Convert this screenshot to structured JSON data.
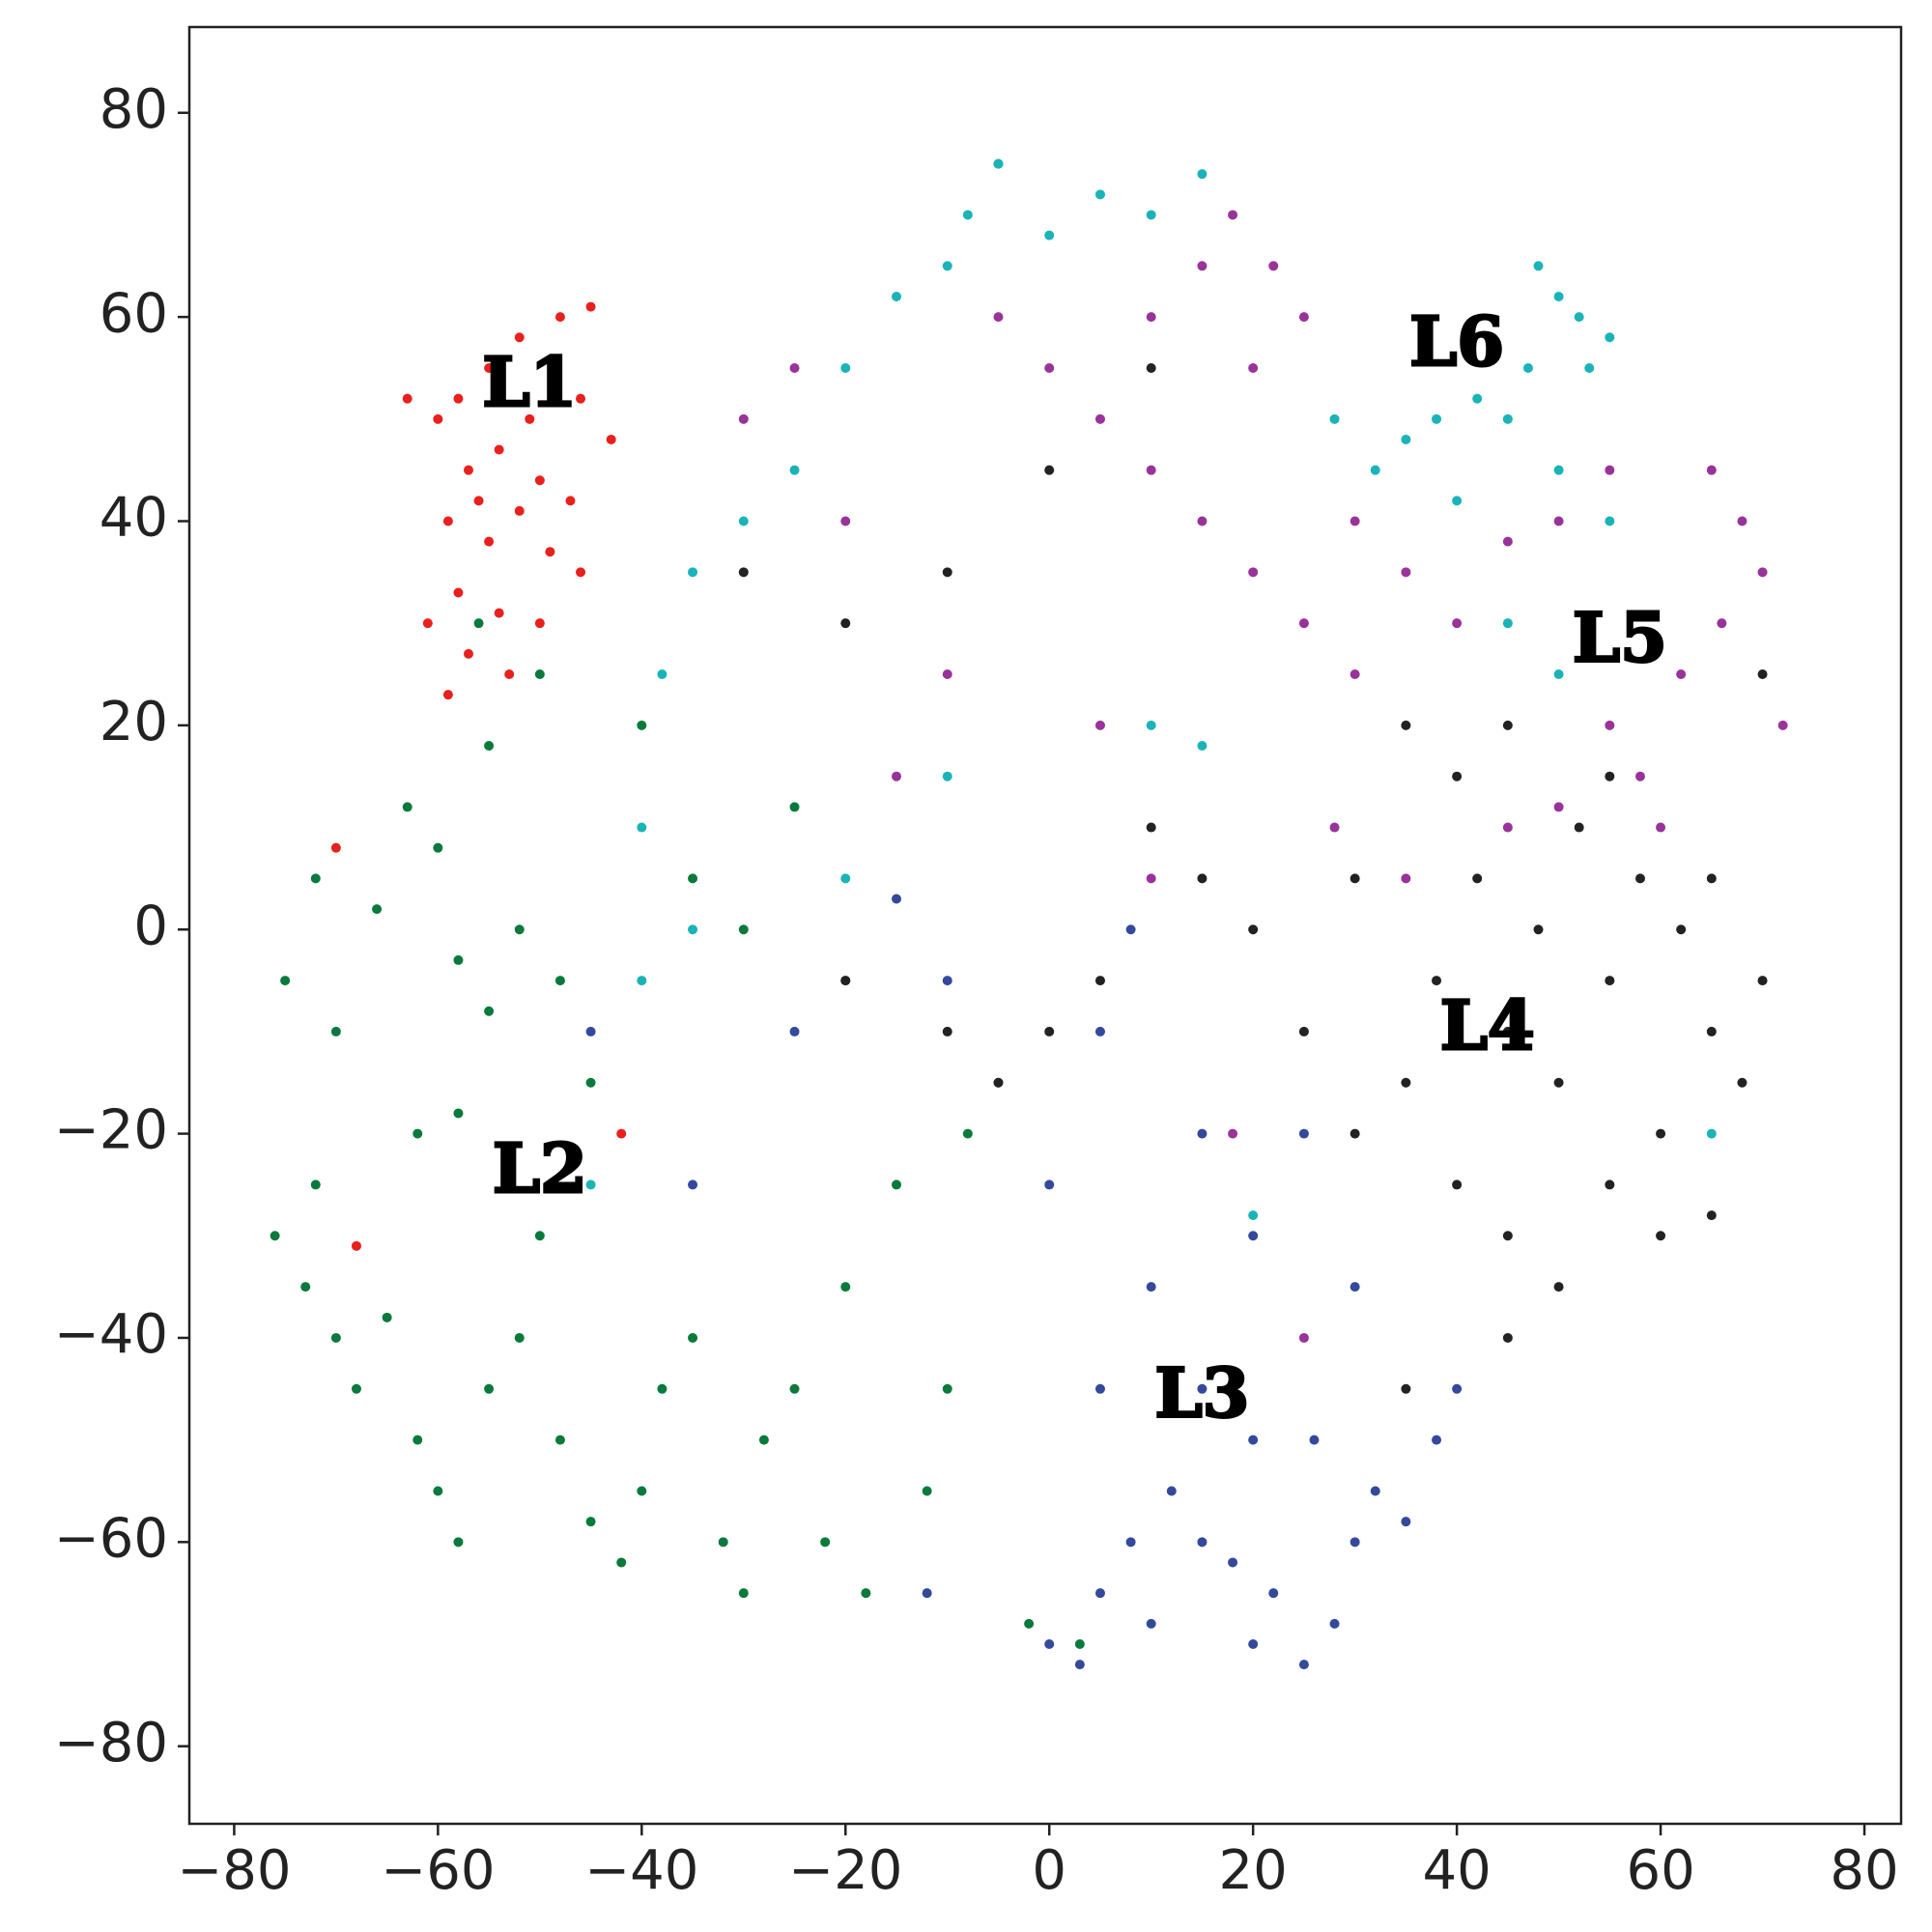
{
  "chart_data": {
    "type": "scatter",
    "xlim": [
      -84.4,
      83.6
    ],
    "ylim": [
      -87.6,
      88.4
    ],
    "xticks": [
      {
        "value": -80,
        "label": "−80"
      },
      {
        "value": -60,
        "label": "−60"
      },
      {
        "value": -40,
        "label": "−40"
      },
      {
        "value": -20,
        "label": "−20"
      },
      0,
      20,
      40,
      60,
      80
    ],
    "yticks": [
      {
        "value": -80,
        "label": "−80"
      },
      {
        "value": -60,
        "label": "−60"
      },
      {
        "value": -40,
        "label": "−40"
      },
      {
        "value": -20,
        "label": "−20"
      },
      0,
      20,
      40,
      60,
      80
    ],
    "series": [
      {
        "color": "#e8201e",
        "x": [
          -58,
          -55,
          -52,
          -48,
          -45,
          -60,
          -57,
          -54,
          -50,
          -47,
          -59,
          -55,
          -52,
          -49,
          -46,
          -58,
          -54,
          -50,
          -61,
          -57,
          -53,
          -59,
          -46,
          -43,
          -51,
          -56,
          -63,
          -70,
          -42,
          -68
        ],
        "values": [
          52,
          55,
          58,
          60,
          61,
          50,
          45,
          47,
          44,
          42,
          40,
          38,
          41,
          37,
          35,
          33,
          31,
          30,
          30,
          27,
          25,
          23,
          52,
          48,
          50,
          42,
          52,
          8,
          -20,
          -31
        ]
      },
      {
        "color": "#0a7a3c",
        "x": [
          -76,
          -73,
          -70,
          -72,
          -68,
          -65,
          -62,
          -60,
          -58,
          -55,
          -52,
          -50,
          -48,
          -45,
          -42,
          -40,
          -38,
          -35,
          -32,
          -30,
          -28,
          -25,
          -22,
          -20,
          -18,
          -15,
          -12,
          -10,
          -75,
          -72,
          -70,
          -66,
          -63,
          -60,
          -58,
          -55,
          -52,
          -48,
          -45,
          -62,
          -58,
          -55,
          -50,
          -56,
          -35,
          -30,
          -25,
          -40,
          -20,
          -8,
          -2,
          3
        ],
        "values": [
          -30,
          -35,
          -40,
          -25,
          -45,
          -38,
          -50,
          -55,
          -60,
          -45,
          -40,
          -30,
          -50,
          -58,
          -62,
          -55,
          -45,
          -40,
          -60,
          -65,
          -50,
          -45,
          -60,
          -35,
          -65,
          -25,
          -55,
          -45,
          -5,
          5,
          -10,
          2,
          12,
          8,
          -3,
          -8,
          0,
          -5,
          -15,
          -20,
          -18,
          18,
          25,
          30,
          5,
          0,
          12,
          20,
          -5,
          -20,
          -68,
          -70
        ]
      },
      {
        "color": "#34499b",
        "x": [
          0,
          3,
          5,
          8,
          10,
          12,
          15,
          18,
          20,
          22,
          25,
          28,
          30,
          32,
          35,
          38,
          26,
          20,
          15,
          5,
          10,
          0,
          -5,
          5,
          15,
          20,
          30,
          -10,
          -15,
          8,
          -25,
          -35,
          -45,
          40,
          -12,
          25
        ],
        "values": [
          -70,
          -72,
          -65,
          -60,
          -68,
          -55,
          -60,
          -62,
          -70,
          -65,
          -72,
          -68,
          -60,
          -55,
          -58,
          -50,
          -50,
          -50,
          -45,
          -45,
          -35,
          -25,
          -15,
          -10,
          -20,
          -30,
          -35,
          -5,
          3,
          0,
          -10,
          -25,
          -10,
          -45,
          -65,
          -20
        ]
      },
      {
        "color": "#222222",
        "x": [
          45,
          50,
          55,
          60,
          65,
          68,
          70,
          62,
          58,
          52,
          48,
          42,
          38,
          35,
          40,
          45,
          50,
          55,
          60,
          65,
          30,
          25,
          20,
          15,
          10,
          5,
          0,
          -5,
          -10,
          -20,
          30,
          35,
          40,
          45,
          55,
          65,
          70,
          -10,
          -20,
          -30,
          0,
          -5,
          10,
          35,
          45
        ],
        "values": [
          -10,
          -15,
          -5,
          -20,
          -10,
          -15,
          -5,
          0,
          5,
          10,
          0,
          5,
          -5,
          -15,
          -25,
          -30,
          -35,
          -25,
          -30,
          -28,
          -20,
          -10,
          0,
          5,
          10,
          -5,
          -10,
          -15,
          -10,
          -5,
          5,
          20,
          15,
          20,
          15,
          5,
          25,
          35,
          30,
          35,
          45,
          75,
          55,
          -45,
          -40
        ]
      },
      {
        "color": "#993399",
        "x": [
          65,
          68,
          70,
          66,
          72,
          62,
          58,
          55,
          60,
          50,
          45,
          40,
          35,
          30,
          25,
          20,
          15,
          10,
          5,
          0,
          -5,
          15,
          18,
          22,
          25,
          20,
          10,
          30,
          28,
          35,
          55,
          50,
          45,
          -25,
          -30,
          -20,
          -10,
          -15,
          5,
          18,
          25,
          10
        ],
        "values": [
          45,
          40,
          35,
          30,
          20,
          25,
          15,
          20,
          10,
          12,
          10,
          30,
          35,
          40,
          30,
          35,
          40,
          45,
          50,
          55,
          60,
          65,
          70,
          65,
          60,
          55,
          60,
          25,
          10,
          5,
          45,
          40,
          38,
          55,
          50,
          40,
          25,
          15,
          20,
          -20,
          -40,
          5
        ]
      },
      {
        "color": "#1ab4b8",
        "x": [
          48,
          50,
          52,
          55,
          53,
          47,
          45,
          42,
          38,
          35,
          32,
          28,
          40,
          50,
          55,
          45,
          50,
          -5,
          -8,
          -10,
          0,
          5,
          10,
          15,
          -15,
          -20,
          -25,
          -30,
          -35,
          -38,
          -40,
          -35,
          -40,
          10,
          15,
          -10,
          -20,
          -45,
          65,
          20
        ],
        "values": [
          65,
          62,
          60,
          58,
          55,
          55,
          50,
          52,
          50,
          48,
          45,
          50,
          42,
          45,
          40,
          30,
          25,
          75,
          70,
          65,
          68,
          72,
          70,
          74,
          62,
          55,
          45,
          40,
          35,
          25,
          10,
          0,
          -5,
          20,
          18,
          15,
          5,
          -25,
          -20,
          -28
        ]
      }
    ],
    "annotations": [
      {
        "text": "L1",
        "x": -51,
        "y": 53
      },
      {
        "text": "L2",
        "x": -50,
        "y": -24
      },
      {
        "text": "L3",
        "x": 15,
        "y": -46
      },
      {
        "text": "L4",
        "x": 43,
        "y": -10
      },
      {
        "text": "L5",
        "x": 56,
        "y": 28
      },
      {
        "text": "L6",
        "x": 40,
        "y": 57
      }
    ]
  }
}
